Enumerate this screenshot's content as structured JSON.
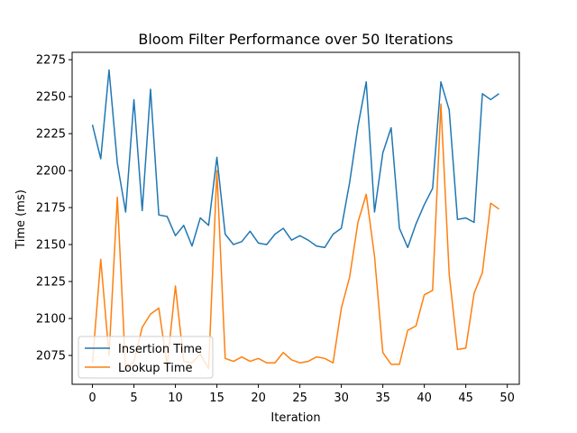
{
  "chart_data": {
    "type": "line",
    "title": "Bloom Filter Performance over 50 Iterations",
    "xlabel": "Iteration",
    "ylabel": "Time (ms)",
    "xlim": [
      -2.45,
      51.45
    ],
    "ylim": [
      2055.5,
      2280.0
    ],
    "xticks": [
      0,
      5,
      10,
      15,
      20,
      25,
      30,
      35,
      40,
      45,
      50
    ],
    "yticks": [
      2075,
      2100,
      2125,
      2150,
      2175,
      2200,
      2225,
      2250,
      2275
    ],
    "legend_position": "lower-left",
    "grid": false,
    "x": [
      0,
      1,
      2,
      3,
      4,
      5,
      6,
      7,
      8,
      9,
      10,
      11,
      12,
      13,
      14,
      15,
      16,
      17,
      18,
      19,
      20,
      21,
      22,
      23,
      24,
      25,
      26,
      27,
      28,
      29,
      30,
      31,
      32,
      33,
      34,
      35,
      36,
      37,
      38,
      39,
      40,
      41,
      42,
      43,
      44,
      45,
      46,
      47,
      48,
      49
    ],
    "series": [
      {
        "name": "Insertion Time",
        "color": "#1f77b4",
        "values": [
          2231,
          2208,
          2268,
          2205,
          2172,
          2248,
          2173,
          2255,
          2170,
          2169,
          2156,
          2163,
          2149,
          2168,
          2163,
          2209,
          2157,
          2150,
          2152,
          2159,
          2151,
          2150,
          2157,
          2161,
          2153,
          2156,
          2153,
          2149,
          2148,
          2157,
          2161,
          2192,
          2230,
          2260,
          2172,
          2212,
          2229,
          2161,
          2148,
          2164,
          2177,
          2188,
          2260,
          2241,
          2167,
          2168,
          2165,
          2252,
          2248,
          2252
        ]
      },
      {
        "name": "Lookup Time",
        "color": "#ff7f0e",
        "values": [
          2070,
          2140,
          2075,
          2182,
          2065,
          2071,
          2094,
          2103,
          2107,
          2068,
          2122,
          2071,
          2070,
          2076,
          2066,
          2200,
          2073,
          2071,
          2074,
          2071,
          2073,
          2070,
          2070,
          2077,
          2072,
          2070,
          2071,
          2074,
          2073,
          2070,
          2107,
          2128,
          2165,
          2184,
          2142,
          2077,
          2069,
          2069,
          2092,
          2095,
          2116,
          2119,
          2245,
          2130,
          2079,
          2080,
          2117,
          2131,
          2178,
          2174
        ]
      }
    ]
  }
}
